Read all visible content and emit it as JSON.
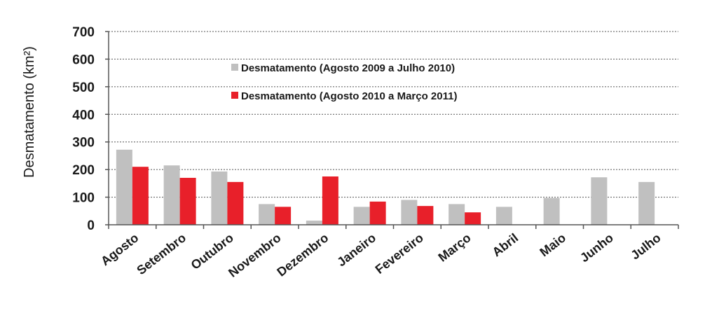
{
  "chart_data": {
    "type": "bar",
    "ylabel": "Desmatamento (km²)",
    "xlabel": "",
    "ylim": [
      0,
      700
    ],
    "yticks": [
      0,
      100,
      200,
      300,
      400,
      500,
      600,
      700
    ],
    "grid": true,
    "legend_position": "top-center",
    "categories": [
      "Agosto",
      "Setembro",
      "Outubro",
      "Novembro",
      "Dezembro",
      "Janeiro",
      "Fevereiro",
      "Março",
      "Abril",
      "Maio",
      "Junho",
      "Julho"
    ],
    "series": [
      {
        "name": "Desmatamento  (Agosto 2009  a Julho 2010)",
        "color": "#c0c0c0",
        "values": [
          272,
          215,
          193,
          75,
          15,
          65,
          90,
          75,
          65,
          97,
          172,
          155
        ]
      },
      {
        "name": "Desmatamento  (Agosto 2010  a Março 2011)",
        "color": "#e8202a",
        "values": [
          210,
          170,
          155,
          65,
          175,
          84,
          68,
          45,
          null,
          null,
          null,
          null
        ]
      }
    ]
  }
}
